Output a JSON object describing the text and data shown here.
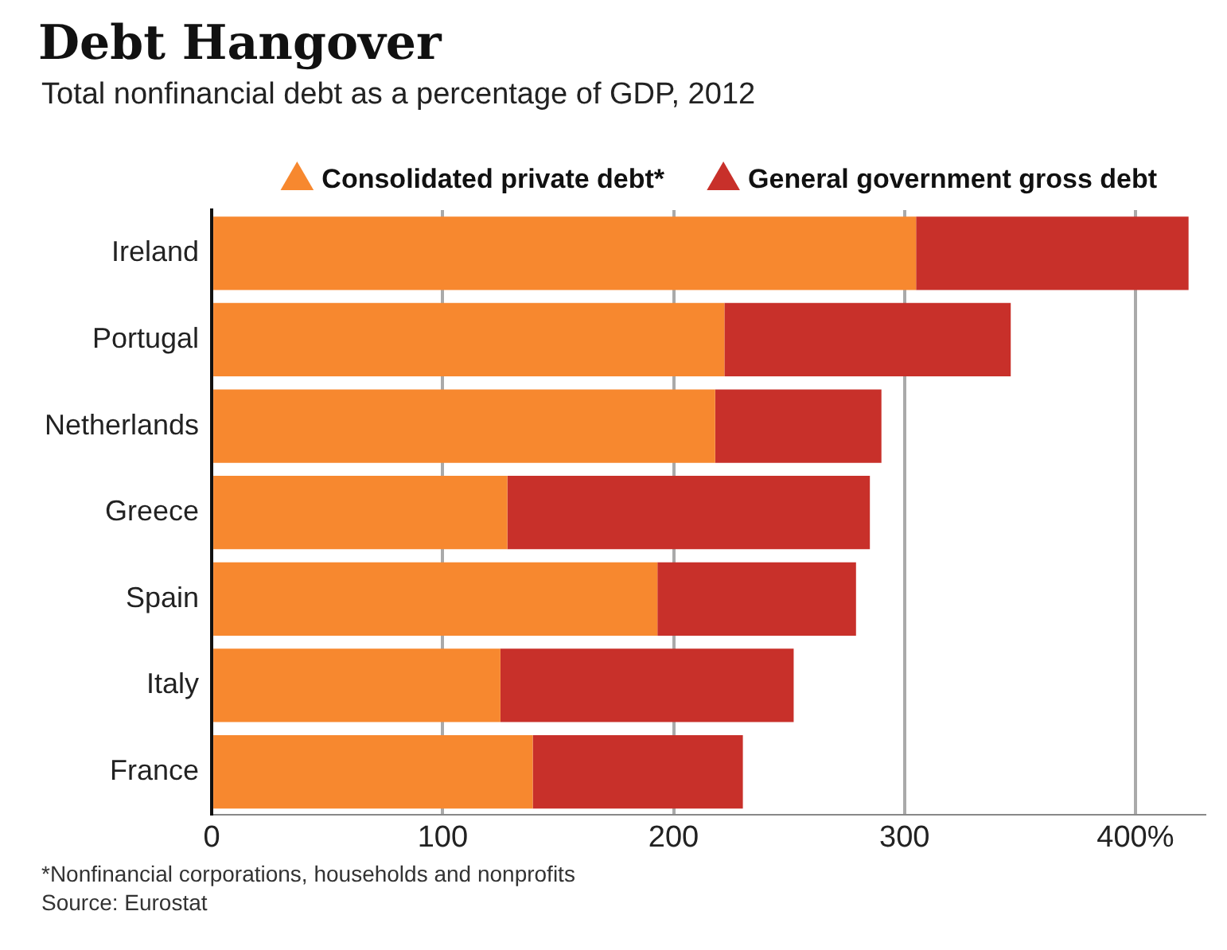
{
  "chart_data": {
    "type": "bar",
    "title": "Debt Hangover",
    "subtitle": "Total nonfinancial debt as a percentage of GDP, 2012",
    "orientation": "horizontal",
    "stacked": true,
    "categories": [
      "Ireland",
      "Portugal",
      "Netherlands",
      "Greece",
      "Spain",
      "Italy",
      "France"
    ],
    "series": [
      {
        "name": "Consolidated private debt*",
        "color": "#f7882f",
        "values": [
          305,
          222,
          218,
          128,
          193,
          125,
          139
        ]
      },
      {
        "name": "General government gross debt",
        "color": "#c8302a",
        "values": [
          118,
          124,
          72,
          157,
          86,
          127,
          91
        ]
      }
    ],
    "xlim": [
      0,
      430
    ],
    "xticks": [
      0,
      100,
      200,
      300,
      {
        "value": 400,
        "label": "400%"
      }
    ],
    "grid": "x",
    "legend": "top",
    "annotations": [
      "*Nonfinancial corporations, households and nonprofits",
      "Source: Eurostat"
    ]
  }
}
